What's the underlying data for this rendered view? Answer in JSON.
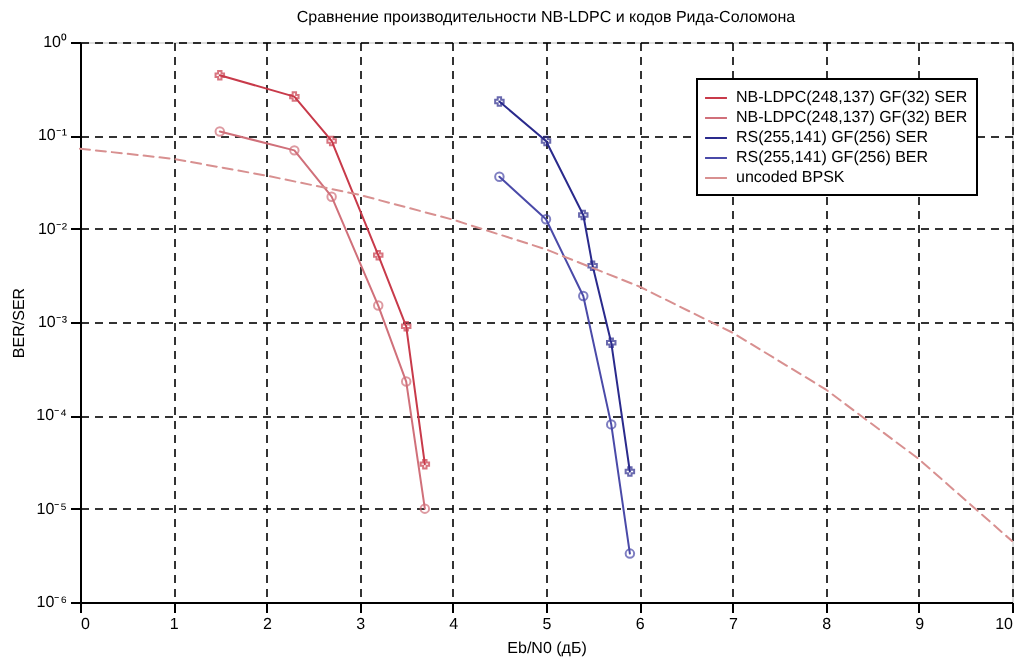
{
  "chart_data": {
    "type": "line",
    "title": "Сравнение производительности NB-LDPC и кодов Рида-Соломона",
    "xlabel": "Eb/N0 (дБ)",
    "ylabel": "BER/SER",
    "log": "y",
    "grid": true,
    "legend": "top right",
    "line_style": "solid",
    "xlim": [
      0,
      10
    ],
    "xticks": [
      0,
      1,
      2,
      3,
      4,
      5,
      6,
      7,
      8,
      9,
      10
    ],
    "ylim": [
      1e-06,
      1
    ],
    "yticks": [
      {
        "value": 1e-06,
        "label": "10⁻⁶"
      },
      {
        "value": 1e-05,
        "label": "10⁻⁵"
      },
      {
        "value": 0.0001,
        "label": "10⁻⁴"
      },
      {
        "value": 0.001,
        "label": "10⁻³"
      },
      {
        "value": 0.01,
        "label": "10⁻²"
      },
      {
        "value": 0.1,
        "label": "10⁻¹"
      },
      {
        "value": 1,
        "label": "10⁰"
      }
    ],
    "series": [
      {
        "name": "NB-LDPC(248,137) GF(32) SER",
        "color": "#c83a4a",
        "marker": "cross",
        "x": [
          1.5,
          2.3,
          2.7,
          3.2,
          3.5,
          3.7
        ],
        "values": [
          0.44,
          0.26,
          0.087,
          0.0052,
          0.0009,
          3e-05
        ]
      },
      {
        "name": "NB-LDPC(248,137) GF(32) BER",
        "color": "#d0707a",
        "marker": "circle",
        "x": [
          1.5,
          2.3,
          2.7,
          3.2,
          3.5,
          3.7
        ],
        "values": [
          0.11,
          0.069,
          0.022,
          0.0015,
          0.00023,
          1e-05
        ]
      },
      {
        "name": "RS(255,141) GF(256) SER",
        "color": "#2a2a8c",
        "marker": "cross",
        "x": [
          4.5,
          5.0,
          5.4,
          5.5,
          5.7,
          5.9
        ],
        "values": [
          0.23,
          0.087,
          0.014,
          0.004,
          0.0006,
          2.5e-05
        ]
      },
      {
        "name": "RS(255,141) GF(256) BER",
        "color": "#4a4aa8",
        "marker": "circle",
        "x": [
          4.5,
          5.0,
          5.4,
          5.7,
          5.9
        ],
        "values": [
          0.036,
          0.0126,
          0.0019,
          8e-05,
          3.3e-06
        ]
      },
      {
        "name": "uncoded BPSK",
        "color": "#d89090",
        "marker": "none",
        "line_style": "dashed",
        "x": [
          0,
          1,
          2,
          3,
          4,
          5,
          6,
          7,
          8,
          9,
          10
        ],
        "values": [
          0.072,
          0.056,
          0.037,
          0.023,
          0.0125,
          0.006,
          0.0024,
          0.00077,
          0.00019,
          3.4e-05,
          4.5e-06
        ]
      }
    ]
  }
}
